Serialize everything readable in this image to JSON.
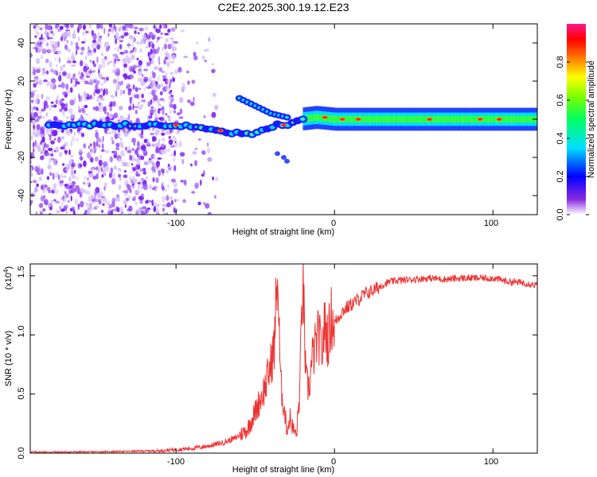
{
  "title": "C2E2.2025.300.19.12.E23",
  "chart_data": [
    {
      "type": "heatmap",
      "title": "C2E2.2025.300.19.12.E23",
      "xlabel": "Height of straight line (km)",
      "ylabel": "Frequency (Hz)",
      "xlim": [
        -192,
        128
      ],
      "ylim": [
        -50,
        50
      ],
      "xticks": [
        -100,
        0,
        100
      ],
      "yticks": [
        -40,
        -20,
        0,
        20,
        40
      ],
      "xtick_labels": [
        "-100",
        "0",
        "100"
      ],
      "ytick_labels": [
        "-40",
        "-20",
        "0",
        "20",
        "40"
      ],
      "colorbar": {
        "label": "Normalized spectral amplitude",
        "range": [
          0,
          1
        ],
        "ticks": [
          0.0,
          0.2,
          0.4,
          0.6,
          0.8
        ],
        "tick_labels": [
          "0.0",
          "0.2",
          "0.4",
          "0.6",
          "0.8"
        ]
      },
      "ridge": {
        "x": [
          -192,
          -150,
          -120,
          -100,
          -80,
          -65,
          -55,
          -45,
          -38,
          -30,
          -22,
          -12,
          0,
          10,
          30,
          60,
          90,
          128
        ],
        "freq": [
          -3,
          -3,
          -3,
          -3,
          -5,
          -7,
          -8,
          -6,
          -3,
          -3,
          0,
          1,
          0,
          0,
          0,
          0,
          0,
          0
        ]
      },
      "upper_branch": {
        "x": [
          -60,
          -55,
          -50,
          -45,
          -40,
          -35,
          -30
        ],
        "freq": [
          11,
          9,
          7,
          5,
          3,
          2,
          1
        ]
      },
      "spur": {
        "x": [
          -36,
          -32,
          -30
        ],
        "freq": [
          -18,
          -20,
          -22
        ]
      }
    },
    {
      "type": "line",
      "xlabel": "Height of straight line (km)",
      "ylabel": "SNR (10 * v/v)",
      "exponent_label": "(x10",
      "exponent_sup": "4",
      "exponent_close": ")",
      "xlim": [
        -192,
        128
      ],
      "ylim": [
        0,
        1.6
      ],
      "xticks": [
        -100,
        0,
        100
      ],
      "yticks": [
        0.0,
        0.5,
        1.0,
        1.5
      ],
      "xtick_labels": [
        "-100",
        "0",
        "100"
      ],
      "ytick_labels": [
        "0.0",
        "0.5",
        "1.0",
        "1.5"
      ],
      "series": [
        {
          "name": "SNR",
          "color": "#ee3333",
          "x": [
            -192,
            -170,
            -150,
            -130,
            -110,
            -100,
            -90,
            -80,
            -70,
            -62,
            -55,
            -50,
            -47,
            -44,
            -41,
            -38,
            -36,
            -34,
            -32,
            -30,
            -28,
            -26,
            -24,
            -22,
            -20,
            -18,
            -16,
            -14,
            -12,
            -10,
            -8,
            -6,
            -4,
            -2,
            0,
            5,
            10,
            15,
            20,
            25,
            30,
            35,
            40,
            50,
            60,
            70,
            80,
            90,
            100,
            110,
            120,
            128
          ],
          "y": [
            0.01,
            0.01,
            0.012,
            0.015,
            0.02,
            0.03,
            0.04,
            0.06,
            0.09,
            0.13,
            0.2,
            0.35,
            0.45,
            0.55,
            0.7,
            0.9,
            1.55,
            0.6,
            0.4,
            0.2,
            0.3,
            0.2,
            0.15,
            0.5,
            1.5,
            0.6,
            0.55,
            0.8,
            0.9,
            1.0,
            0.85,
            1.1,
            0.95,
            1.15,
            1.1,
            1.2,
            1.25,
            1.3,
            1.35,
            1.38,
            1.42,
            1.45,
            1.46,
            1.47,
            1.48,
            1.47,
            1.48,
            1.48,
            1.48,
            1.45,
            1.44,
            1.42
          ]
        }
      ]
    }
  ]
}
